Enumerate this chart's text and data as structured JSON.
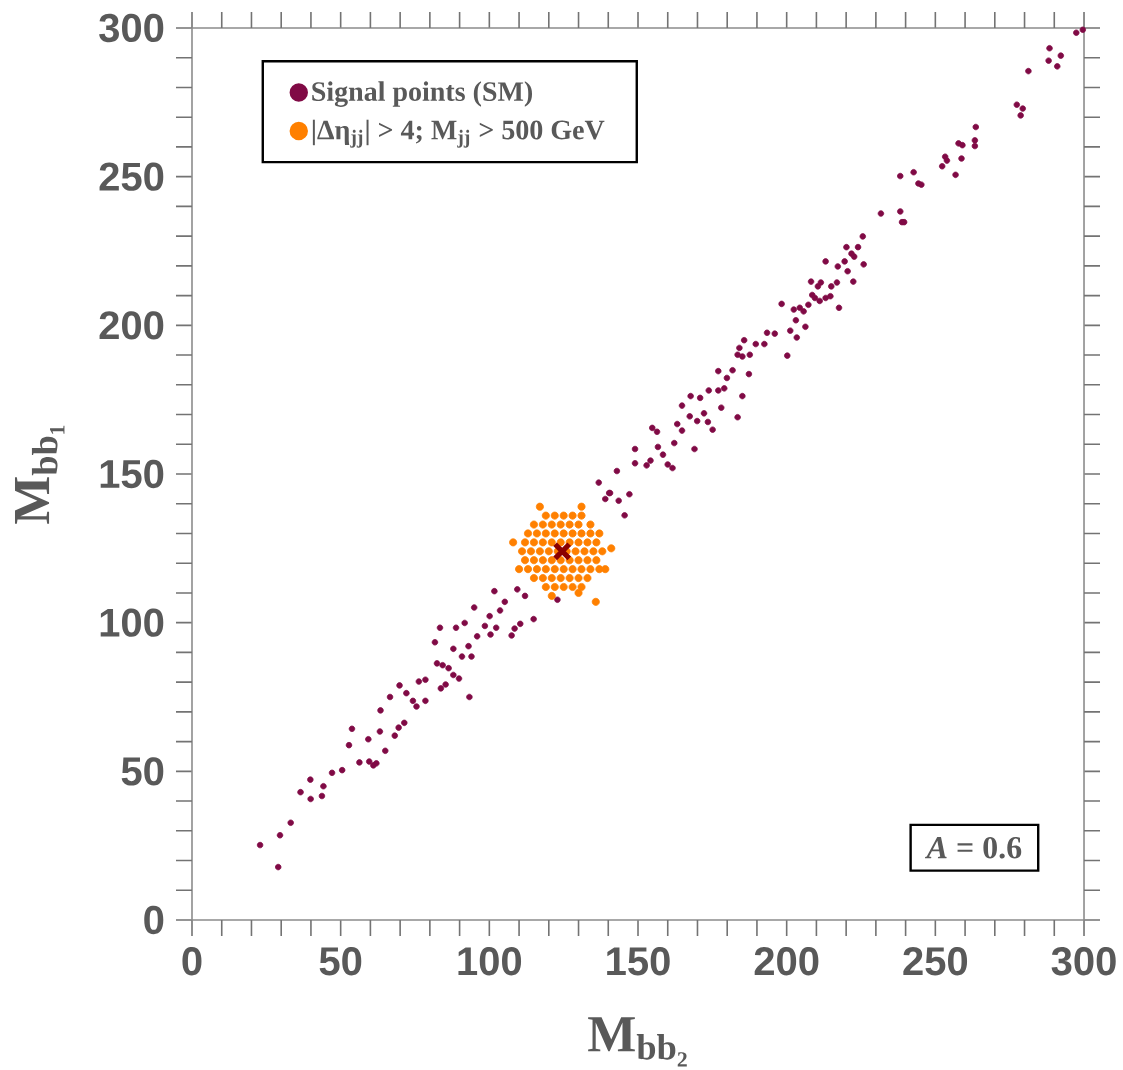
{
  "chart_data": {
    "type": "scatter",
    "xlabel": "M$_{bb₂}$",
    "ylabel": "M$_{bb₁}$",
    "xlim": [
      0,
      300
    ],
    "ylim": [
      0,
      300
    ],
    "xticks": [
      0,
      {
        "value": 10,
        "label": null
      },
      {
        "value": 20,
        "label": null
      },
      {
        "value": 30,
        "label": null
      },
      {
        "value": 40,
        "label": null
      },
      50,
      {
        "value": 60,
        "label": null
      },
      {
        "value": 70,
        "label": null
      },
      {
        "value": 80,
        "label": null
      },
      {
        "value": 90,
        "label": null
      },
      100,
      {
        "value": 110,
        "label": null
      },
      {
        "value": 120,
        "label": null
      },
      {
        "value": 130,
        "label": null
      },
      {
        "value": 140,
        "label": null
      },
      150,
      {
        "value": 160,
        "label": null
      },
      {
        "value": 170,
        "label": null
      },
      {
        "value": 180,
        "label": null
      },
      {
        "value": 190,
        "label": null
      },
      200,
      {
        "value": 210,
        "label": null
      },
      {
        "value": 220,
        "label": null
      },
      {
        "value": 230,
        "label": null
      },
      {
        "value": 240,
        "label": null
      },
      250,
      {
        "value": 260,
        "label": null
      },
      {
        "value": 270,
        "label": null
      },
      {
        "value": 280,
        "label": null
      },
      {
        "value": 290,
        "label": null
      },
      300
    ],
    "yticks": [
      0,
      {
        "value": 10,
        "label": null
      },
      {
        "value": 20,
        "label": null
      },
      {
        "value": 30,
        "label": null
      },
      {
        "value": 40,
        "label": null
      },
      50,
      {
        "value": 60,
        "label": null
      },
      {
        "value": 70,
        "label": null
      },
      {
        "value": 80,
        "label": null
      },
      {
        "value": 90,
        "label": null
      },
      100,
      {
        "value": 110,
        "label": null
      },
      {
        "value": 120,
        "label": null
      },
      {
        "value": 130,
        "label": null
      },
      {
        "value": 140,
        "label": null
      },
      150,
      {
        "value": 160,
        "label": null
      },
      {
        "value": 170,
        "label": null
      },
      {
        "value": 180,
        "label": null
      },
      {
        "value": 190,
        "label": null
      },
      200,
      {
        "value": 210,
        "label": null
      },
      {
        "value": 220,
        "label": null
      },
      {
        "value": 230,
        "label": null
      },
      {
        "value": 240,
        "label": null
      },
      250,
      {
        "value": 260,
        "label": null
      },
      {
        "value": 270,
        "label": null
      },
      {
        "value": 280,
        "label": null
      },
      {
        "value": 290,
        "label": null
      },
      300
    ],
    "legend": "top left",
    "annotations": [
      "*A*    =  0.6"
    ],
    "series": [
      {
        "name": "Signal points (SM)",
        "color": "#800a45",
        "marker": "circle",
        "x": [
          22.9,
          29,
          29.6,
          33.2,
          36.5,
          39.8,
          39.9,
          43.7,
          44.2,
          47.1,
          50.5,
          52.8,
          53.8,
          56.3,
          59.3,
          59.6,
          61,
          62,
          63.4,
          63.2,
          65,
          66.6,
          68.2,
          69.5,
          69.8,
          71.4,
          72.1,
          74.3,
          75.5,
          76.3,
          78.5,
          78.5,
          81.7,
          82.4,
          83.4,
          83.7,
          84.3,
          85.3,
          86.3,
          87.9,
          87.9,
          88.8,
          89.8,
          91.7,
          90.8,
          93.3,
          93,
          94,
          94.9,
          95.9,
          98.5,
          100.4,
          100.1,
          102.3,
          101.7,
          103.6,
          105.2,
          107.5,
          108.5,
          110.4,
          109.4,
          112,
          114.9,
          122.9,
          139,
          140.6,
          145.5,
          143.5,
          136.8,
          140.3,
          142.9,
          147.1,
          149,
          149,
          152.9,
          154.2,
          154.8,
          156.4,
          156.7,
          158.4,
          160,
          161.6,
          162.2,
          163.2,
          164.8,
          164.8,
          167.4,
          167.7,
          169,
          169.9,
          170.9,
          172.2,
          173.5,
          173.8,
          175.1,
          177,
          177,
          178,
          179,
          179.9,
          181.8,
          183.5,
          183.5,
          184.1,
          185.1,
          185.1,
          185.7,
          187.3,
          187.6,
          189.6,
          192.5,
          193.4,
          196,
          198.3,
          200.2,
          201.2,
          202.4,
          203.1,
          203.4,
          204.4,
          205.7,
          206.3,
          207.3,
          208.2,
          208.6,
          209.5,
          210.5,
          211.1,
          211.5,
          213.1,
          213.1,
          214.7,
          215,
          216.9,
          217.6,
          217.2,
          219.5,
          220.1,
          220.5,
          221.8,
          222.7,
          222.4,
          224,
          225.6,
          225.9,
          231.7,
          238.2,
          238.8,
          239.5,
          238.2,
          242.7,
          244.3,
          245.3,
          252.3,
          253.3,
          253.9,
          256.8,
          257.8,
          258.8,
          259.1,
          263.3,
          263.3,
          263.6,
          277.4,
          279.4,
          278.7,
          281.3,
          288.1,
          288.4,
          291,
          292.2,
          297.4,
          299.6
        ],
        "values": [
          25.2,
          17.8,
          28.5,
          32.7,
          43,
          47.2,
          40.7,
          41.7,
          45,
          49.5,
          50.4,
          58.8,
          64.3,
          53,
          60.8,
          53.3,
          52,
          52.7,
          70.5,
          63.4,
          56.9,
          75,
          62,
          64.7,
          78.9,
          66.3,
          76.3,
          73.7,
          71.8,
          80.2,
          80.8,
          73.7,
          93.4,
          86.3,
          98.3,
          77.9,
          85.7,
          79.2,
          84.7,
          91.2,
          82.4,
          98.3,
          81.2,
          99.9,
          88.6,
          75,
          92.1,
          88.6,
          105.1,
          95.4,
          98.9,
          96,
          102.2,
          98.3,
          110.6,
          104.1,
          107,
          95.7,
          98,
          99.6,
          111.2,
          109,
          101.2,
          107.7,
          141.6,
          143.6,
          136.1,
          141,
          147.1,
          143.6,
          151,
          143.2,
          158.4,
          153.6,
          152.9,
          154.5,
          165.5,
          164.2,
          159.1,
          156.5,
          153.2,
          152,
          160.4,
          166.8,
          173,
          164.6,
          169.4,
          176.2,
          158.4,
          167.8,
          175.6,
          170.4,
          167.5,
          178.1,
          164.9,
          184.6,
          178.1,
          172.3,
          178.8,
          182.3,
          184.9,
          169.1,
          190.1,
          192.4,
          189.5,
          176.2,
          195,
          183.6,
          190.1,
          193.7,
          193.7,
          197.5,
          197.2,
          207.2,
          189.8,
          198.2,
          205.3,
          201.7,
          195.9,
          205.9,
          204.7,
          199.5,
          206.9,
          214.7,
          210.2,
          209.2,
          213.1,
          208.2,
          214.4,
          221.5,
          209.2,
          209.8,
          213.1,
          214.4,
          205.9,
          219.8,
          221.5,
          226.3,
          218.2,
          224.1,
          223.1,
          214.7,
          226.3,
          229.9,
          220.5,
          237.6,
          238.3,
          234.7,
          234.7,
          250.2,
          251.5,
          247.7,
          247.3,
          253.5,
          256.7,
          255.4,
          250.6,
          261.2,
          256.1,
          260.6,
          262.2,
          260.3,
          266.7,
          274.2,
          272.9,
          270.6,
          285.5,
          289,
          293.2,
          287.1,
          290.7,
          298.4,
          299.4
        ]
      },
      {
        "name": "|Δη$_{jj}$| > 4; M$_{jj}$ > 500 GeV",
        "color": "#ff8000",
        "marker": "circle",
        "x": [
          119,
          122,
          125,
          128,
          131,
          115,
          118,
          121,
          124,
          127,
          130,
          134,
          113,
          116,
          119,
          122,
          125,
          128,
          131,
          134,
          137,
          112,
          115,
          118,
          121,
          124,
          127,
          130,
          133,
          136,
          111,
          114,
          117,
          120,
          123,
          126,
          129,
          132,
          135,
          138,
          112,
          115,
          118,
          121,
          124,
          127,
          130,
          133,
          136,
          113,
          116,
          119,
          122,
          125,
          128,
          131,
          134,
          137,
          115,
          118,
          121,
          124,
          127,
          130,
          133,
          119,
          122,
          125,
          128,
          131,
          117,
          131,
          108,
          141,
          139,
          121,
          130,
          135.8,
          110
        ],
        "values": [
          136,
          136,
          136,
          136,
          136,
          133,
          133,
          133,
          133,
          133,
          133,
          133,
          130,
          130,
          130,
          130,
          130,
          130,
          130,
          130,
          130,
          127,
          127,
          127,
          127,
          127,
          127,
          127,
          127,
          127,
          124,
          124,
          124,
          124,
          124,
          124,
          124,
          124,
          124,
          124,
          121,
          121,
          121,
          121,
          121,
          121,
          121,
          121,
          121,
          118,
          118,
          118,
          118,
          118,
          118,
          118,
          118,
          118,
          115,
          115,
          115,
          115,
          115,
          115,
          115,
          112,
          112,
          112,
          112,
          112,
          139,
          139,
          127,
          125,
          118,
          109,
          110,
          107,
          118
        ]
      },
      {
        "color": "#8b0000",
        "marker": "cross",
        "x": [
          124.5
        ],
        "values": [
          124
        ]
      }
    ]
  }
}
